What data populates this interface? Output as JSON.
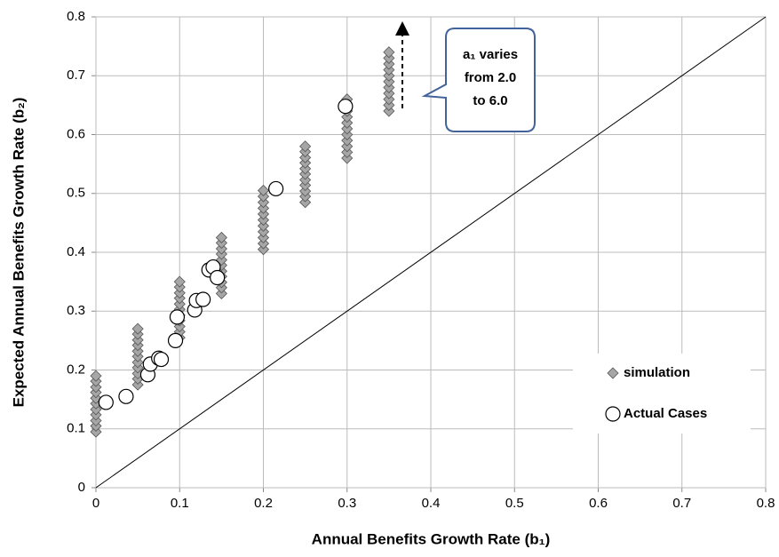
{
  "chart_data": {
    "type": "scatter",
    "xlabel": "Annual Benefits Growth Rate (b₁)",
    "ylabel": "Expected Annual Benefits Growth Rate (b₂)",
    "annotation": [
      "a₁ varies",
      "from 2.0",
      "to 6.0"
    ],
    "xlim": [
      0,
      0.8
    ],
    "ylim": [
      0,
      0.8
    ],
    "xticks": [
      0,
      0.1,
      0.2,
      0.3,
      0.4,
      0.5,
      0.6,
      0.7,
      0.8
    ],
    "yticks": [
      0,
      0.1,
      0.2,
      0.3,
      0.4,
      0.5,
      0.6,
      0.7,
      0.8
    ],
    "grid": true,
    "legend": "lower right",
    "series": [
      {
        "name": "simulation",
        "marker": "diamond",
        "color": "#a6a6a6",
        "x": [
          0,
          0,
          0,
          0,
          0,
          0,
          0,
          0,
          0,
          0,
          0,
          0.05,
          0.05,
          0.05,
          0.05,
          0.05,
          0.05,
          0.05,
          0.05,
          0.05,
          0.05,
          0.05,
          0.1,
          0.1,
          0.1,
          0.1,
          0.1,
          0.1,
          0.1,
          0.1,
          0.1,
          0.1,
          0.1,
          0.15,
          0.15,
          0.15,
          0.15,
          0.15,
          0.15,
          0.15,
          0.15,
          0.15,
          0.15,
          0.15,
          0.2,
          0.2,
          0.2,
          0.2,
          0.2,
          0.2,
          0.2,
          0.2,
          0.2,
          0.2,
          0.2,
          0.25,
          0.25,
          0.25,
          0.25,
          0.25,
          0.25,
          0.25,
          0.25,
          0.25,
          0.25,
          0.25,
          0.3,
          0.3,
          0.3,
          0.3,
          0.3,
          0.3,
          0.3,
          0.3,
          0.3,
          0.3,
          0.3,
          0.35,
          0.35,
          0.35,
          0.35,
          0.35,
          0.35,
          0.35,
          0.35,
          0.35,
          0.35,
          0.35
        ],
        "values": [
          0.095,
          0.105,
          0.114,
          0.124,
          0.133,
          0.143,
          0.152,
          0.162,
          0.171,
          0.181,
          0.19,
          0.175,
          0.185,
          0.194,
          0.204,
          0.213,
          0.223,
          0.232,
          0.242,
          0.251,
          0.261,
          0.27,
          0.255,
          0.265,
          0.274,
          0.284,
          0.293,
          0.303,
          0.312,
          0.322,
          0.331,
          0.341,
          0.35,
          0.33,
          0.34,
          0.349,
          0.359,
          0.368,
          0.378,
          0.387,
          0.397,
          0.406,
          0.416,
          0.425,
          0.405,
          0.415,
          0.425,
          0.435,
          0.445,
          0.455,
          0.465,
          0.475,
          0.485,
          0.495,
          0.505,
          0.485,
          0.495,
          0.504,
          0.514,
          0.523,
          0.533,
          0.542,
          0.552,
          0.561,
          0.571,
          0.58,
          0.56,
          0.57,
          0.58,
          0.59,
          0.6,
          0.61,
          0.62,
          0.63,
          0.64,
          0.65,
          0.66,
          0.64,
          0.65,
          0.66,
          0.67,
          0.68,
          0.69,
          0.7,
          0.71,
          0.72,
          0.73,
          0.74
        ]
      },
      {
        "name": "Actual Cases",
        "marker": "circle",
        "color": "#ffffff",
        "x": [
          0.012,
          0.036,
          0.062,
          0.065,
          0.075,
          0.078,
          0.095,
          0.097,
          0.118,
          0.12,
          0.128,
          0.135,
          0.14,
          0.145,
          0.215,
          0.298
        ],
        "values": [
          0.145,
          0.155,
          0.192,
          0.21,
          0.22,
          0.218,
          0.25,
          0.29,
          0.302,
          0.318,
          0.32,
          0.37,
          0.375,
          0.357,
          0.508,
          0.648
        ]
      }
    ]
  }
}
